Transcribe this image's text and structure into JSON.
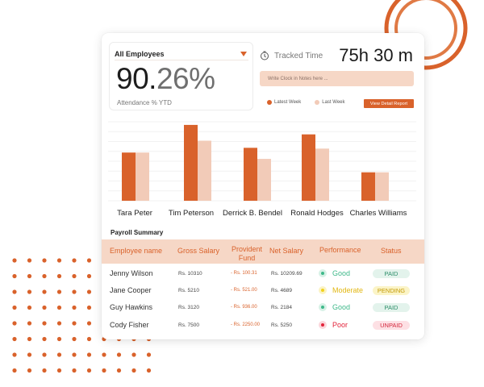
{
  "filter": {
    "selected": "All Employees"
  },
  "attendance": {
    "value_int": "90.",
    "value_dec": "26%",
    "label": "Attendance % YTD"
  },
  "tracked_time": {
    "label": "Tracked Time",
    "value": "75h 30 m"
  },
  "notes": {
    "placeholder": "Write Clock in Notes here ..."
  },
  "legend": {
    "latest": "Latest Week",
    "last": "Last Week"
  },
  "detail_button": "View Detail Report",
  "colors": {
    "accent": "#d9622b",
    "accent_light": "#f2cbb8",
    "header_bg": "#f6d7c6"
  },
  "chart_data": {
    "type": "bar",
    "categories": [
      "Tara Peter",
      "Tim Peterson",
      "Derrick B. Bendel",
      "Ronald Hodges",
      "Charles Williams"
    ],
    "series": [
      {
        "name": "Latest Week",
        "values": [
          61,
          96,
          67,
          84,
          36
        ]
      },
      {
        "name": "Last Week",
        "values": [
          61,
          76,
          53,
          66,
          36
        ]
      }
    ],
    "ylim": [
      0,
      100
    ],
    "grid": true
  },
  "payroll": {
    "title": "Payroll Summary",
    "headers": {
      "name": "Employee name",
      "gross": "Gross Salary",
      "pf_line1": "Provident",
      "pf_line2": "Fund",
      "net": "Net Salary",
      "performance": "Performance",
      "status": "Status"
    },
    "rows": [
      {
        "name": "Jenny Wilson",
        "gross": "Rs. 10310",
        "pf": "- Rs. 100.31",
        "net": "Rs. 10209.69",
        "perf": "Good",
        "status": "PAID"
      },
      {
        "name": "Jane Cooper",
        "gross": "Rs. 5210",
        "pf": "- Rs. 521.00",
        "net": "Rs. 4689",
        "perf": "Moderate",
        "status": "PENDING"
      },
      {
        "name": "Guy Hawkins",
        "gross": "Rs. 3120",
        "pf": "- Rs. 936.00",
        "net": "Rs. 2184",
        "perf": "Good",
        "status": "PAID"
      },
      {
        "name": "Cody Fisher",
        "gross": "Rs. 7500",
        "pf": "- Rs. 2250.00",
        "net": "Rs. 5250",
        "perf": "Poor",
        "status": "UNPAID"
      }
    ]
  },
  "perf_colors": {
    "Good": {
      "dot": "#3fb98a",
      "halo": "#d7f1e6",
      "text": "#3fb98a"
    },
    "Moderate": {
      "dot": "#f2d21d",
      "halo": "#fbf3c4",
      "text": "#e2b712"
    },
    "Poor": {
      "dot": "#e2243b",
      "halo": "#fbd6db",
      "text": "#e2243b"
    }
  },
  "status_colors": {
    "PAID": {
      "bg": "#e3f3ec",
      "text": "#2e8e6a"
    },
    "PENDING": {
      "bg": "#fbf4c7",
      "text": "#c39a05"
    },
    "UNPAID": {
      "bg": "#fde0e4",
      "text": "#d4283d"
    }
  }
}
